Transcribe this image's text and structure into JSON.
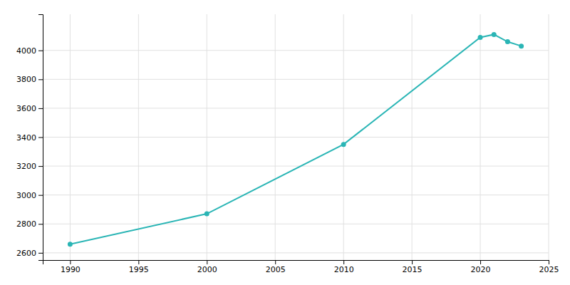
{
  "chart_data": {
    "type": "line",
    "x": [
      1990,
      2000,
      2010,
      2020,
      2021,
      2022,
      2023
    ],
    "values": [
      2660,
      2870,
      3350,
      4090,
      4110,
      4060,
      4030
    ],
    "color": "#2ab5b5",
    "marker": "circle",
    "xlim": [
      1988,
      2025
    ],
    "ylim": [
      2550,
      4250
    ],
    "xticks": [
      1990,
      1995,
      2000,
      2005,
      2010,
      2015,
      2020,
      2025
    ],
    "yticks": [
      2600,
      2800,
      3000,
      3200,
      3400,
      3600,
      3800,
      4000
    ],
    "grid": true
  }
}
